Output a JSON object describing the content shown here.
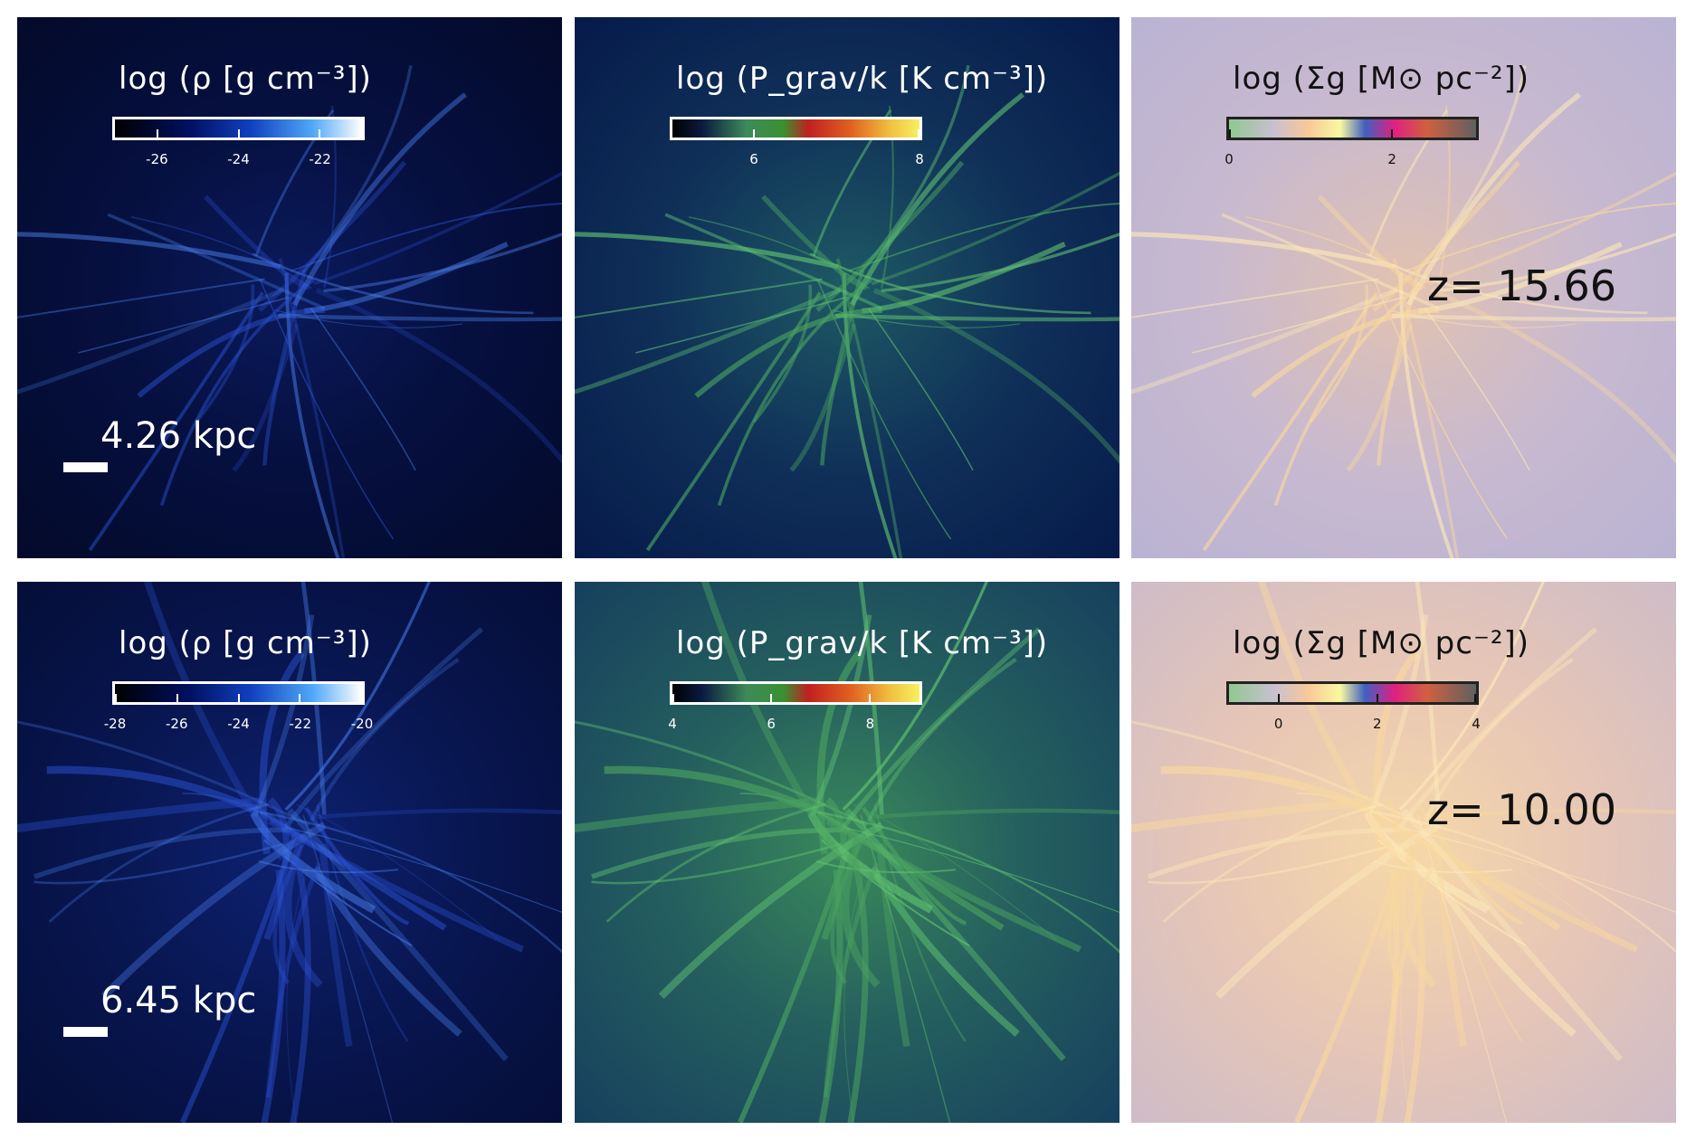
{
  "panels": [
    {
      "row": "top",
      "title": "log (ρ [g cm⁻³])",
      "ticks": [
        "-26",
        "-24",
        "-22"
      ],
      "scale_label": "4.26 kpc"
    },
    {
      "row": "top",
      "title": "log (P_grav/k [K cm⁻³])",
      "ticks": [
        "6",
        "8"
      ]
    },
    {
      "row": "top",
      "title": "log (Σg [M⊙ pc⁻²])",
      "ticks": [
        "0",
        "2"
      ],
      "redshift": "z=  15.66"
    },
    {
      "row": "bottom",
      "title": "log (ρ [g cm⁻³])",
      "ticks": [
        "-28",
        "-26",
        "-24",
        "-22",
        "-20"
      ],
      "scale_label": "6.45 kpc"
    },
    {
      "row": "bottom",
      "title": "log (P_grav/k [K cm⁻³])",
      "ticks": [
        "4",
        "6",
        "8"
      ]
    },
    {
      "row": "bottom",
      "title": "log (Σg [M⊙ pc⁻²])",
      "ticks": [
        "0",
        "2",
        "4"
      ],
      "redshift": "z=  10.00"
    }
  ]
}
